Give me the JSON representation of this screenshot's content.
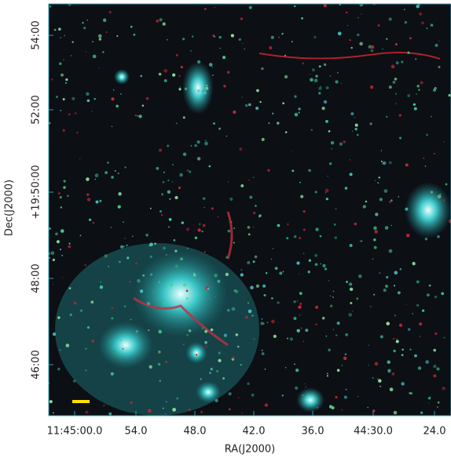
{
  "axes": {
    "x_label": "RA(J2000)",
    "y_label": "Dec(J2000)",
    "x_ticks": [
      "11:45:00.0",
      "54.0",
      "48.0",
      "42.0",
      "36.0",
      "44:30.0",
      "24.0"
    ],
    "y_ticks": [
      "54:00",
      "52:00",
      "+19:50:00",
      "48:00",
      "46:00"
    ]
  }
}
